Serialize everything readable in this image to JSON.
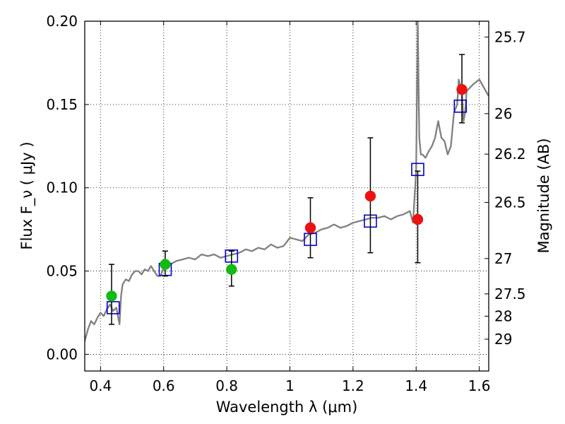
{
  "chart_data": {
    "type": "scatter",
    "xlabel": "Wavelength  λ (μm)",
    "ylabel": "Flux  F_ν  ( μJy )",
    "y2label": "Magnitude (AB)",
    "xlim": [
      0.35,
      1.63
    ],
    "ylim": [
      -0.01,
      0.2
    ],
    "grid": true,
    "x_ticks": [
      {
        "value": 0.4,
        "label": "0.4"
      },
      {
        "value": 0.6,
        "label": "0.6"
      },
      {
        "value": 0.8,
        "label": "0.8"
      },
      {
        "value": 1.0,
        "label": "1"
      },
      {
        "value": 1.2,
        "label": "1.2"
      },
      {
        "value": 1.4,
        "label": "1.4"
      },
      {
        "value": 1.6,
        "label": "1.6"
      }
    ],
    "y_ticks": [
      {
        "value": 0.0,
        "label": "0.00"
      },
      {
        "value": 0.05,
        "label": "0.05"
      },
      {
        "value": 0.1,
        "label": "0.10"
      },
      {
        "value": 0.15,
        "label": "0.15"
      },
      {
        "value": 0.2,
        "label": "0.20"
      }
    ],
    "y2_ticks": [
      {
        "label": "25.7",
        "flux": 0.1905
      },
      {
        "label": "26",
        "flux": 0.1445
      },
      {
        "label": "26.2",
        "flux": 0.1202
      },
      {
        "label": "26.5",
        "flux": 0.0912
      },
      {
        "label": "27",
        "flux": 0.0575
      },
      {
        "label": "27.5",
        "flux": 0.0363
      },
      {
        "label": "28",
        "flux": 0.0229
      },
      {
        "label": "29",
        "flux": 0.0091
      }
    ],
    "series": [
      {
        "kind": "line",
        "color": "#808080",
        "points": [
          [
            0.35,
            0.008
          ],
          [
            0.36,
            0.015
          ],
          [
            0.37,
            0.02
          ],
          [
            0.38,
            0.018
          ],
          [
            0.39,
            0.022
          ],
          [
            0.4,
            0.025
          ],
          [
            0.41,
            0.023
          ],
          [
            0.42,
            0.027
          ],
          [
            0.43,
            0.03
          ],
          [
            0.44,
            0.026
          ],
          [
            0.45,
            0.028
          ],
          [
            0.46,
            0.018
          ],
          [
            0.465,
            0.035
          ],
          [
            0.47,
            0.042
          ],
          [
            0.48,
            0.045
          ],
          [
            0.49,
            0.044
          ],
          [
            0.5,
            0.048
          ],
          [
            0.51,
            0.05
          ],
          [
            0.52,
            0.05
          ],
          [
            0.53,
            0.048
          ],
          [
            0.54,
            0.051
          ],
          [
            0.55,
            0.05
          ],
          [
            0.56,
            0.053
          ],
          [
            0.57,
            0.05
          ],
          [
            0.58,
            0.047
          ],
          [
            0.59,
            0.047
          ],
          [
            0.6,
            0.052
          ],
          [
            0.62,
            0.054
          ],
          [
            0.64,
            0.056
          ],
          [
            0.66,
            0.057
          ],
          [
            0.68,
            0.058
          ],
          [
            0.7,
            0.057
          ],
          [
            0.72,
            0.06
          ],
          [
            0.74,
            0.059
          ],
          [
            0.76,
            0.06
          ],
          [
            0.78,
            0.058
          ],
          [
            0.8,
            0.059
          ],
          [
            0.82,
            0.06
          ],
          [
            0.84,
            0.061
          ],
          [
            0.86,
            0.063
          ],
          [
            0.88,
            0.062
          ],
          [
            0.9,
            0.064
          ],
          [
            0.92,
            0.063
          ],
          [
            0.94,
            0.066
          ],
          [
            0.96,
            0.064
          ],
          [
            0.98,
            0.065
          ],
          [
            1.0,
            0.07
          ],
          [
            1.02,
            0.069
          ],
          [
            1.04,
            0.068
          ],
          [
            1.06,
            0.072
          ],
          [
            1.08,
            0.073
          ],
          [
            1.1,
            0.075
          ],
          [
            1.12,
            0.076
          ],
          [
            1.14,
            0.078
          ],
          [
            1.16,
            0.076
          ],
          [
            1.18,
            0.077
          ],
          [
            1.2,
            0.079
          ],
          [
            1.22,
            0.08
          ],
          [
            1.24,
            0.081
          ],
          [
            1.26,
            0.082
          ],
          [
            1.28,
            0.082
          ],
          [
            1.3,
            0.083
          ],
          [
            1.32,
            0.081
          ],
          [
            1.34,
            0.083
          ],
          [
            1.36,
            0.084
          ],
          [
            1.38,
            0.086
          ],
          [
            1.39,
            0.079
          ],
          [
            1.4,
            0.11
          ],
          [
            1.405,
            0.2
          ],
          [
            1.41,
            0.13
          ],
          [
            1.415,
            0.12
          ],
          [
            1.42,
            0.12
          ],
          [
            1.43,
            0.118
          ],
          [
            1.44,
            0.122
          ],
          [
            1.45,
            0.125
          ],
          [
            1.46,
            0.13
          ],
          [
            1.47,
            0.14
          ],
          [
            1.48,
            0.13
          ],
          [
            1.49,
            0.128
          ],
          [
            1.5,
            0.12
          ],
          [
            1.51,
            0.125
          ],
          [
            1.52,
            0.145
          ],
          [
            1.53,
            0.15
          ],
          [
            1.535,
            0.165
          ],
          [
            1.545,
            0.158
          ],
          [
            1.55,
            0.14
          ],
          [
            1.555,
            0.145
          ],
          [
            1.56,
            0.158
          ],
          [
            1.57,
            0.16
          ],
          [
            1.58,
            0.162
          ],
          [
            1.6,
            0.165
          ],
          [
            1.63,
            0.155
          ]
        ]
      },
      {
        "kind": "points",
        "marker": "open-square",
        "color": "#0000cc",
        "points": [
          [
            0.44,
            0.028
          ],
          [
            0.605,
            0.051
          ],
          [
            0.815,
            0.059
          ],
          [
            1.065,
            0.069
          ],
          [
            1.255,
            0.08
          ],
          [
            1.405,
            0.111
          ],
          [
            1.54,
            0.149
          ]
        ]
      },
      {
        "kind": "points",
        "marker": "circle",
        "color": "#11bb11",
        "points": [
          {
            "x": 0.435,
            "y": 0.035,
            "err_low": 0.018,
            "err_high": 0.054
          },
          {
            "x": 0.605,
            "y": 0.054,
            "err_low": 0.047,
            "err_high": 0.062
          },
          {
            "x": 0.815,
            "y": 0.051,
            "err_low": 0.041,
            "err_high": 0.062
          }
        ]
      },
      {
        "kind": "points",
        "marker": "circle",
        "color": "#ee1111",
        "points": [
          {
            "x": 1.065,
            "y": 0.076,
            "err_low": 0.058,
            "err_high": 0.094
          },
          {
            "x": 1.255,
            "y": 0.095,
            "err_low": 0.061,
            "err_high": 0.13
          },
          {
            "x": 1.405,
            "y": 0.081,
            "err_low": 0.055,
            "err_high": 0.11
          },
          {
            "x": 1.545,
            "y": 0.159,
            "err_low": 0.139,
            "err_high": 0.18
          }
        ]
      }
    ]
  }
}
